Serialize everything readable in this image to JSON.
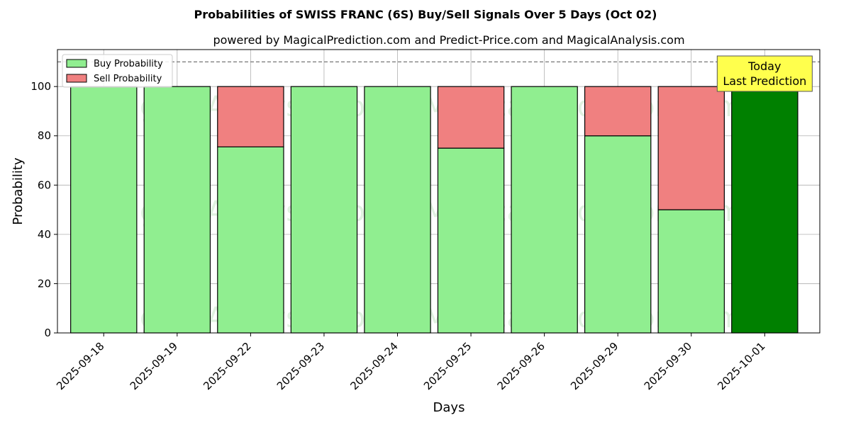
{
  "chart_data": {
    "type": "bar",
    "stacked": true,
    "title": "Probabilities of SWISS FRANC (6S) Buy/Sell Signals Over 5 Days (Oct 02)",
    "subtitle": "powered by MagicalPrediction.com and Predict-Price.com and MagicalAnalysis.com",
    "xlabel": "Days",
    "ylabel": "Probability",
    "ylim": [
      0,
      115
    ],
    "yticks": [
      0,
      20,
      40,
      60,
      80,
      100
    ],
    "grid": true,
    "reference_line": 110,
    "legend_position": "top-left",
    "categories": [
      "2025-09-18",
      "2025-09-19",
      "2025-09-22",
      "2025-09-23",
      "2025-09-24",
      "2025-09-25",
      "2025-09-26",
      "2025-09-29",
      "2025-09-30",
      "2025-10-01"
    ],
    "series": [
      {
        "name": "Buy Probability",
        "color": "#90ee90",
        "values": [
          100,
          100,
          75.5,
          100,
          100,
          75,
          100,
          80,
          50,
          100
        ]
      },
      {
        "name": "Sell Probability",
        "color": "#f08080",
        "values": [
          0,
          0,
          24.5,
          0,
          0,
          25,
          0,
          20,
          50,
          0
        ]
      }
    ],
    "highlight": {
      "index": 9,
      "color": "#008000"
    },
    "annotation": {
      "lines": [
        "Today",
        "Last Prediction"
      ],
      "background": "#ffff4d"
    },
    "watermarks": [
      "MagicalAnalysis.com",
      "MagicalPrediction.com"
    ]
  }
}
